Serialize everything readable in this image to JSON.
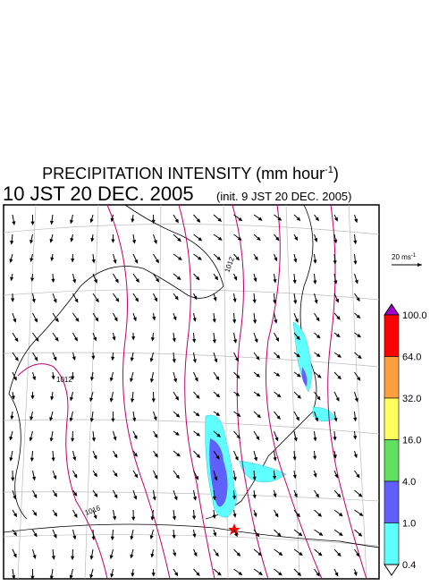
{
  "header": {
    "title": "PRECIPITATION INTENSITY (mm hour",
    "title_sup": "-1",
    "title_end": ")",
    "time": "10 JST 20 DEC. 2005",
    "init": "(init. 9 JST 20 DEC. 2005)"
  },
  "scale_arrow": {
    "label": "20 ms",
    "label_sup": "-1"
  },
  "contour_labels": [
    "1012",
    "1012",
    "1016"
  ],
  "colorbar": {
    "top_color": "#a000c8",
    "bottom_color": "#ffffff",
    "segments": [
      {
        "label": "100.0",
        "color": "#ff0000"
      },
      {
        "label": "64.0",
        "color": "#ffa040"
      },
      {
        "label": "32.0",
        "color": "#ffff60"
      },
      {
        "label": "16.0",
        "color": "#60e060"
      },
      {
        "label": "4.0",
        "color": "#6060ff"
      },
      {
        "label": "1.0",
        "color": "#60ffff"
      }
    ],
    "last_label": "0.4"
  }
}
